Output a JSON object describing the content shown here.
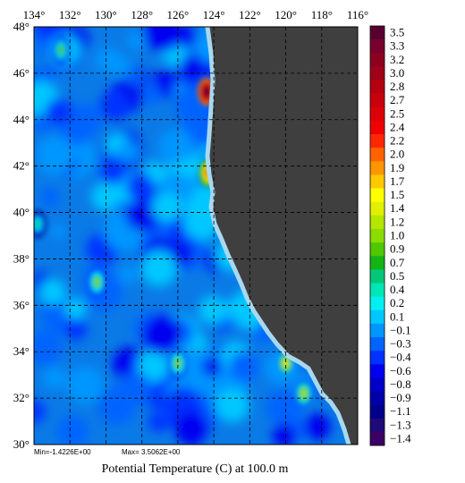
{
  "title": "Potential Temperature (C) at 100.0 m",
  "stats": {
    "min": "Min=-1.4226E+00",
    "max": "Max= 3.5062E+00"
  },
  "chart_data": {
    "type": "heatmap",
    "x_ticks": [
      "134°",
      "132°",
      "130°",
      "128°",
      "126°",
      "124°",
      "122°",
      "120°",
      "118°",
      "116°"
    ],
    "y_ticks": [
      "48°",
      "46°",
      "44°",
      "42°",
      "40°",
      "38°",
      "36°",
      "34°",
      "32°",
      "30°"
    ],
    "xlim": [
      134,
      116
    ],
    "ylim": [
      30,
      48
    ],
    "grid": true,
    "colorbar": {
      "labels": [
        "3.5",
        "3.3",
        "3.2",
        "3.0",
        "2.8",
        "2.7",
        "2.5",
        "2.4",
        "2.2",
        "2.0",
        "1.9",
        "1.7",
        "1.5",
        "1.4",
        "1.2",
        "1.0",
        "0.9",
        "0.7",
        "0.5",
        "0.4",
        "0.2",
        "0.1",
        "−0.1",
        "−0.3",
        "−0.4",
        "−0.6",
        "−0.8",
        "−0.9",
        "−1.1",
        "−1.3",
        "−1.4"
      ],
      "colors": [
        "#5a0030",
        "#78002c",
        "#8c0020",
        "#a00018",
        "#b40010",
        "#c8000c",
        "#dc0008",
        "#f00000",
        "#ff2800",
        "#ff6400",
        "#ff9600",
        "#ffc800",
        "#ffff00",
        "#e0f000",
        "#b4e600",
        "#8cdc00",
        "#50c800",
        "#14b414",
        "#00c878",
        "#00e6b4",
        "#00f0f0",
        "#00c8ff",
        "#0096ff",
        "#0064ff",
        "#0032ff",
        "#0000f0",
        "#0000c8",
        "#0000a8",
        "#00008c",
        "#1e0a78",
        "#3c0064"
      ]
    },
    "hotspots": [
      {
        "lon": 124.4,
        "lat": 45.2,
        "value": 3.5
      },
      {
        "lon": 124.3,
        "lat": 41.7,
        "value": 2.2
      },
      {
        "lon": 120.0,
        "lat": 33.5,
        "value": 1.4
      },
      {
        "lon": 119.0,
        "lat": 32.2,
        "value": 1.2
      },
      {
        "lon": 126.0,
        "lat": 33.5,
        "value": 1.0
      },
      {
        "lon": 130.5,
        "lat": 37.0,
        "value": 1.1
      },
      {
        "lon": 132.5,
        "lat": 47.0,
        "value": 0.9
      },
      {
        "lon": 133.8,
        "lat": 39.5,
        "value": 0.5
      }
    ]
  }
}
